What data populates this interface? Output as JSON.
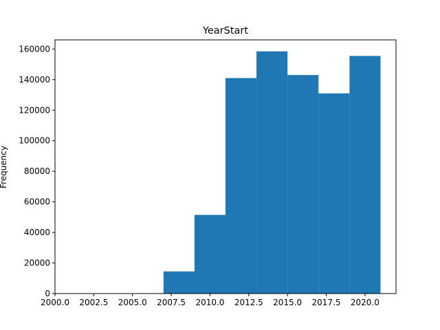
{
  "chart_data": {
    "type": "bar",
    "histogram": true,
    "title": "YearStart",
    "xlabel": "",
    "ylabel": "Frequency",
    "xlim": [
      2000,
      2022
    ],
    "ylim": [
      0,
      166000
    ],
    "x_ticks": [
      2000.0,
      2002.5,
      2005.0,
      2007.5,
      2010.0,
      2012.5,
      2015.0,
      2017.5,
      2020.0
    ],
    "x_tick_labels": [
      "2000.0",
      "2002.5",
      "2005.0",
      "2007.5",
      "2010.0",
      "2012.5",
      "2015.0",
      "2017.5",
      "2020.0"
    ],
    "y_ticks": [
      0,
      20000,
      40000,
      60000,
      80000,
      100000,
      120000,
      140000,
      160000
    ],
    "y_tick_labels": [
      "0",
      "20000",
      "40000",
      "60000",
      "80000",
      "100000",
      "120000",
      "140000",
      "160000"
    ],
    "bins": [
      {
        "x0": 2001,
        "x1": 2003,
        "value": 0
      },
      {
        "x0": 2003,
        "x1": 2005,
        "value": 0
      },
      {
        "x0": 2005,
        "x1": 2007,
        "value": 0
      },
      {
        "x0": 2007,
        "x1": 2009,
        "value": 14500
      },
      {
        "x0": 2009,
        "x1": 2011,
        "value": 51500
      },
      {
        "x0": 2011,
        "x1": 2013,
        "value": 141000
      },
      {
        "x0": 2013,
        "x1": 2015,
        "value": 158500
      },
      {
        "x0": 2015,
        "x1": 2017,
        "value": 143000
      },
      {
        "x0": 2017,
        "x1": 2019,
        "value": 131000
      },
      {
        "x0": 2019,
        "x1": 2021,
        "value": 155500
      }
    ],
    "bar_color": "#1f77b4",
    "grid": false,
    "legend": "none"
  }
}
